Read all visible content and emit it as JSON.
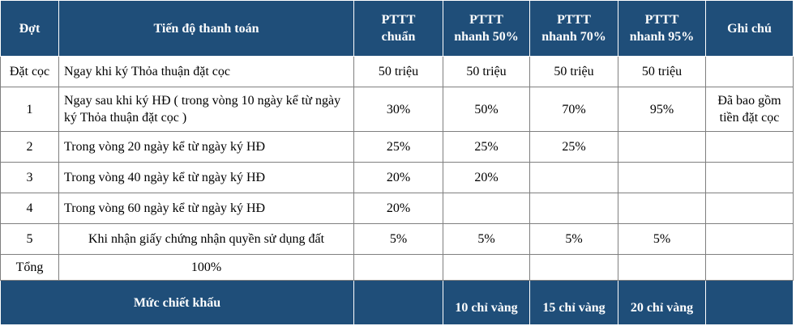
{
  "headers": {
    "dot": "Đợt",
    "tien_do": "Tiến độ thanh toán",
    "pttt_chuan": [
      "PTTT",
      "chuẩn"
    ],
    "pttt_50": [
      "PTTT",
      "nhanh 50%"
    ],
    "pttt_70": [
      "PTTT",
      "nhanh 70%"
    ],
    "pttt_95": [
      "PTTT",
      "nhanh 95%"
    ],
    "ghi_chu": "Ghi chú"
  },
  "rows": [
    {
      "dot": "Đặt cọc",
      "desc": "Ngay khi ký Thỏa thuận đặt cọc",
      "c1": "50 triệu",
      "c2": "50 triệu",
      "c3": "50 triệu",
      "c4": "50 triệu",
      "note": ""
    },
    {
      "dot": "1",
      "desc": "Ngay sau khi ký HĐ ( trong vòng 10 ngày kể từ ngày ký Thỏa thuận đặt cọc )",
      "c1": "30%",
      "c2": "50%",
      "c3": "70%",
      "c4": "95%",
      "note": "Đã bao gồm tiền đặt cọc"
    },
    {
      "dot": "2",
      "desc": "Trong vòng 20 ngày kể từ ngày ký HĐ",
      "c1": "25%",
      "c2": "25%",
      "c3": "25%",
      "c4": "",
      "note": ""
    },
    {
      "dot": "3",
      "desc": "Trong vòng 40 ngày kể từ ngày ký HĐ",
      "c1": "20%",
      "c2": "20%",
      "c3": "",
      "c4": "",
      "note": ""
    },
    {
      "dot": "4",
      "desc": "Trong vòng 60 ngày kể từ ngày ký HĐ",
      "c1": "20%",
      "c2": "",
      "c3": "",
      "c4": "",
      "note": ""
    },
    {
      "dot": "5",
      "desc": "Khi nhận giấy chứng nhận quyền sử dụng đất",
      "c1": "5%",
      "c2": "5%",
      "c3": "5%",
      "c4": "5%",
      "note": ""
    },
    {
      "dot": "Tổng",
      "desc": "100%",
      "c1": "",
      "c2": "",
      "c3": "",
      "c4": "",
      "note": ""
    }
  ],
  "footer": {
    "label": "Mức chiết khấu",
    "c1": "",
    "c2": "10 chỉ vàng",
    "c3": "15 chỉ vàng",
    "c4": "20 chỉ vàng",
    "note": ""
  }
}
